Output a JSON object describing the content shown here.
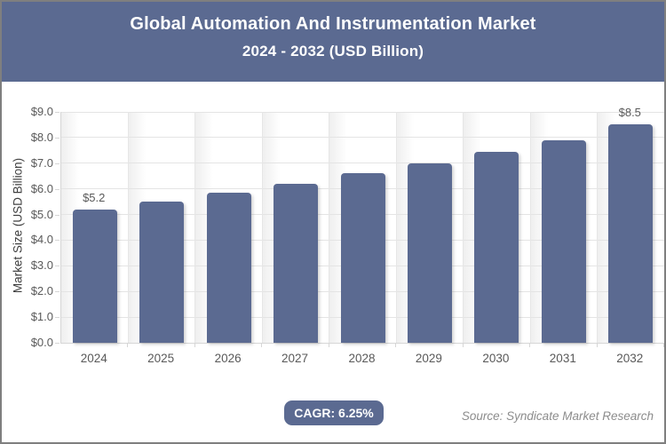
{
  "header": {
    "title": "Global Automation And Instrumentation Market",
    "subtitle": "2024 - 2032 (USD Billion)"
  },
  "footer": {
    "cagr_label": "CAGR: 6.25%",
    "source": "Source: Syndicate Market Research"
  },
  "colors": {
    "accent": "#5b6a91",
    "bar": "#5b6a91",
    "header_bg": "#5b6a91",
    "grid": "#e4e4e4",
    "axis": "#d6d6d6",
    "tick_text": "#595959",
    "page_border": "#7f7f7f"
  },
  "chart_data": {
    "type": "bar",
    "title": "Global Automation And Instrumentation Market 2024 - 2032 (USD Billion)",
    "categories": [
      "2024",
      "2025",
      "2026",
      "2027",
      "2028",
      "2029",
      "2030",
      "2031",
      "2032"
    ],
    "values": [
      5.2,
      5.5,
      5.85,
      6.2,
      6.6,
      7.0,
      7.45,
      7.9,
      8.5
    ],
    "point_labels": [
      "$5.2",
      "",
      "",
      "",
      "",
      "",
      "",
      "",
      "$8.5"
    ],
    "xlabel": "",
    "ylabel": "Market Size (USD Billion)",
    "ylim": [
      0,
      9
    ],
    "y_tick_labels": [
      "$0.0",
      "$1.0",
      "$2.0",
      "$3.0",
      "$4.0",
      "$5.0",
      "$6.0",
      "$7.0",
      "$8.0",
      "$9.0"
    ],
    "grid": "on",
    "legend": "none",
    "bar_color": "#5b6a91",
    "cagr": "6.25%"
  }
}
